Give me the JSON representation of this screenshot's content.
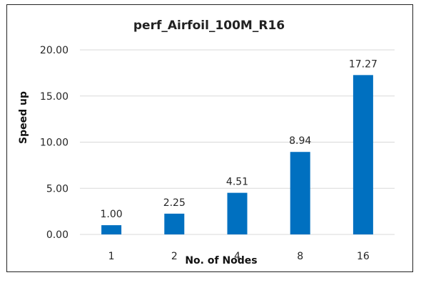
{
  "chart_data": {
    "type": "bar",
    "title": "perf_Airfoil_100M_R16",
    "xlabel": "No. of Nodes",
    "ylabel": "Speed up",
    "categories": [
      "1",
      "2",
      "4",
      "8",
      "16"
    ],
    "values": [
      1.0,
      2.25,
      4.51,
      8.94,
      17.27
    ],
    "data_labels": [
      "1.00",
      "2.25",
      "4.51",
      "8.94",
      "17.27"
    ],
    "y_ticks": [
      "0.00",
      "5.00",
      "10.00",
      "15.00",
      "20.00"
    ],
    "ylim": [
      0,
      20
    ],
    "grid": "horizontal",
    "legend": "none",
    "bar_color": "#0070c0"
  }
}
